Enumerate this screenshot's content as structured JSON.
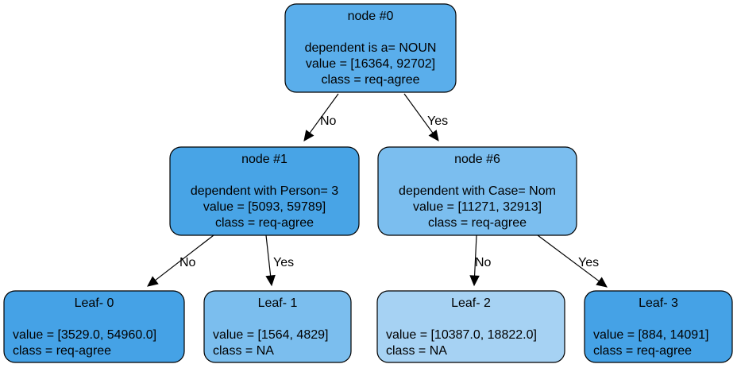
{
  "tree": {
    "nodes": [
      {
        "id": "n0",
        "title": "node #0",
        "lines": [
          "dependent is a= NOUN",
          "value = [16364, 92702]",
          "class = req-agree"
        ],
        "fill": "#5aaeeb"
      },
      {
        "id": "n1",
        "title": "node #1",
        "lines": [
          "dependent with Person= 3",
          "value = [5093, 59789]",
          "class = req-agree"
        ],
        "fill": "#48a4e6"
      },
      {
        "id": "n6",
        "title": "node #6",
        "lines": [
          "dependent with Case= Nom",
          "value = [11271, 32913]",
          "class = req-agree"
        ],
        "fill": "#7bbeef"
      },
      {
        "id": "l0",
        "title": "Leaf- 0",
        "lines": [
          "value = [3529.0, 54960.0]",
          "class = req-agree"
        ],
        "fill": "#45a2e6"
      },
      {
        "id": "l1",
        "title": "Leaf- 1",
        "lines": [
          "value = [1564, 4829]",
          "class = NA"
        ],
        "fill": "#7bbeee"
      },
      {
        "id": "l2",
        "title": "Leaf- 2",
        "lines": [
          "value = [10387.0, 18822.0]",
          "class = NA"
        ],
        "fill": "#a6d2f3"
      },
      {
        "id": "l3",
        "title": "Leaf- 3",
        "lines": [
          "value = [884, 14091]",
          "class = req-agree"
        ],
        "fill": "#45a2e6"
      }
    ],
    "edges": [
      {
        "from": "n0",
        "to": "n1",
        "label": "No"
      },
      {
        "from": "n0",
        "to": "n6",
        "label": "Yes"
      },
      {
        "from": "n1",
        "to": "l0",
        "label": "No"
      },
      {
        "from": "n1",
        "to": "l1",
        "label": "Yes"
      },
      {
        "from": "n6",
        "to": "l2",
        "label": "No"
      },
      {
        "from": "n6",
        "to": "l3",
        "label": "Yes"
      }
    ]
  }
}
